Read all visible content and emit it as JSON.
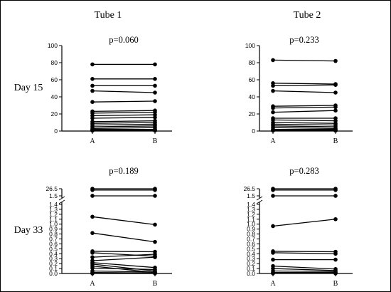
{
  "columns": [
    "Tube 1",
    "Tube 2"
  ],
  "rows": [
    "Day 15",
    "Day 33"
  ],
  "chart_data": [
    {
      "type": "line",
      "id": "tube1-day15",
      "title": "p=0.060",
      "categories": [
        "A",
        "B"
      ],
      "ylim": [
        0,
        100
      ],
      "yticks": [
        "0",
        "20",
        "40",
        "60",
        "80",
        "100"
      ],
      "pairs": [
        [
          78,
          78
        ],
        [
          61,
          61
        ],
        [
          53,
          53
        ],
        [
          47,
          45
        ],
        [
          34,
          35
        ],
        [
          23,
          24
        ],
        [
          21,
          22
        ],
        [
          18,
          19
        ],
        [
          15,
          16
        ],
        [
          11,
          12
        ],
        [
          9,
          10
        ],
        [
          7,
          8
        ],
        [
          5,
          6
        ],
        [
          3,
          4
        ],
        [
          2,
          2
        ],
        [
          1,
          1
        ],
        [
          0.5,
          0.5
        ]
      ]
    },
    {
      "type": "line",
      "id": "tube2-day15",
      "title": "p=0.233",
      "categories": [
        "A",
        "B"
      ],
      "ylim": [
        0,
        100
      ],
      "yticks": [
        "0",
        "20",
        "40",
        "60",
        "80",
        "100"
      ],
      "pairs": [
        [
          83,
          82
        ],
        [
          56,
          55
        ],
        [
          53,
          54
        ],
        [
          47,
          45
        ],
        [
          29,
          30
        ],
        [
          27,
          28
        ],
        [
          22,
          24
        ],
        [
          15,
          15
        ],
        [
          13,
          12
        ],
        [
          10,
          9
        ],
        [
          8,
          7
        ],
        [
          6,
          5
        ],
        [
          4,
          3
        ],
        [
          2,
          2
        ],
        [
          1,
          1
        ],
        [
          0.5,
          0.5
        ]
      ]
    },
    {
      "type": "line",
      "id": "tube1-day33",
      "title": "p=0.189",
      "categories": [
        "A",
        "B"
      ],
      "broken_axis": true,
      "ylim_lower": [
        0,
        1.4
      ],
      "ylim_upper": [
        1.5,
        26.5
      ],
      "yticks": [
        "0.0",
        "0.1",
        "0.2",
        "0.3",
        "0.4",
        "0.5",
        "0.6",
        "0.7",
        "0.8",
        "0.9",
        "1.0",
        "1.1",
        "1.2",
        "1.3",
        "1.4",
        "1.5",
        "26.5"
      ],
      "pairs": [
        [
          26.5,
          26.5
        ],
        [
          22,
          22
        ],
        [
          1.55,
          1.55
        ],
        [
          1.15,
          0.99
        ],
        [
          0.82,
          0.64
        ],
        [
          0.45,
          0.44
        ],
        [
          0.42,
          0.35
        ],
        [
          0.33,
          0.39
        ],
        [
          0.26,
          0.33
        ],
        [
          0.22,
          0.12
        ],
        [
          0.19,
          0.05
        ],
        [
          0.15,
          0.02
        ],
        [
          0.11,
          0.08
        ],
        [
          0.05,
          0.03
        ],
        [
          0.02,
          0.01
        ],
        [
          0.0,
          0.0
        ]
      ]
    },
    {
      "type": "line",
      "id": "tube2-day33",
      "title": "p=0.283",
      "categories": [
        "A",
        "B"
      ],
      "broken_axis": true,
      "ylim_lower": [
        0,
        1.4
      ],
      "ylim_upper": [
        1.5,
        26.5
      ],
      "yticks": [
        "0.0",
        "0.1",
        "0.2",
        "0.3",
        "0.4",
        "0.5",
        "0.6",
        "0.7",
        "0.8",
        "0.9",
        "1.0",
        "1.1",
        "1.2",
        "1.3",
        "1.4",
        "1.5",
        "26.5"
      ],
      "pairs": [
        [
          26.5,
          26.5
        ],
        [
          22,
          22
        ],
        [
          1.55,
          1.55
        ],
        [
          0.96,
          1.1
        ],
        [
          0.45,
          0.44
        ],
        [
          0.42,
          0.4
        ],
        [
          0.28,
          0.28
        ],
        [
          0.15,
          0.09
        ],
        [
          0.1,
          0.06
        ],
        [
          0.05,
          0.04
        ],
        [
          0.02,
          0.02
        ],
        [
          0.0,
          0.0
        ]
      ]
    }
  ]
}
